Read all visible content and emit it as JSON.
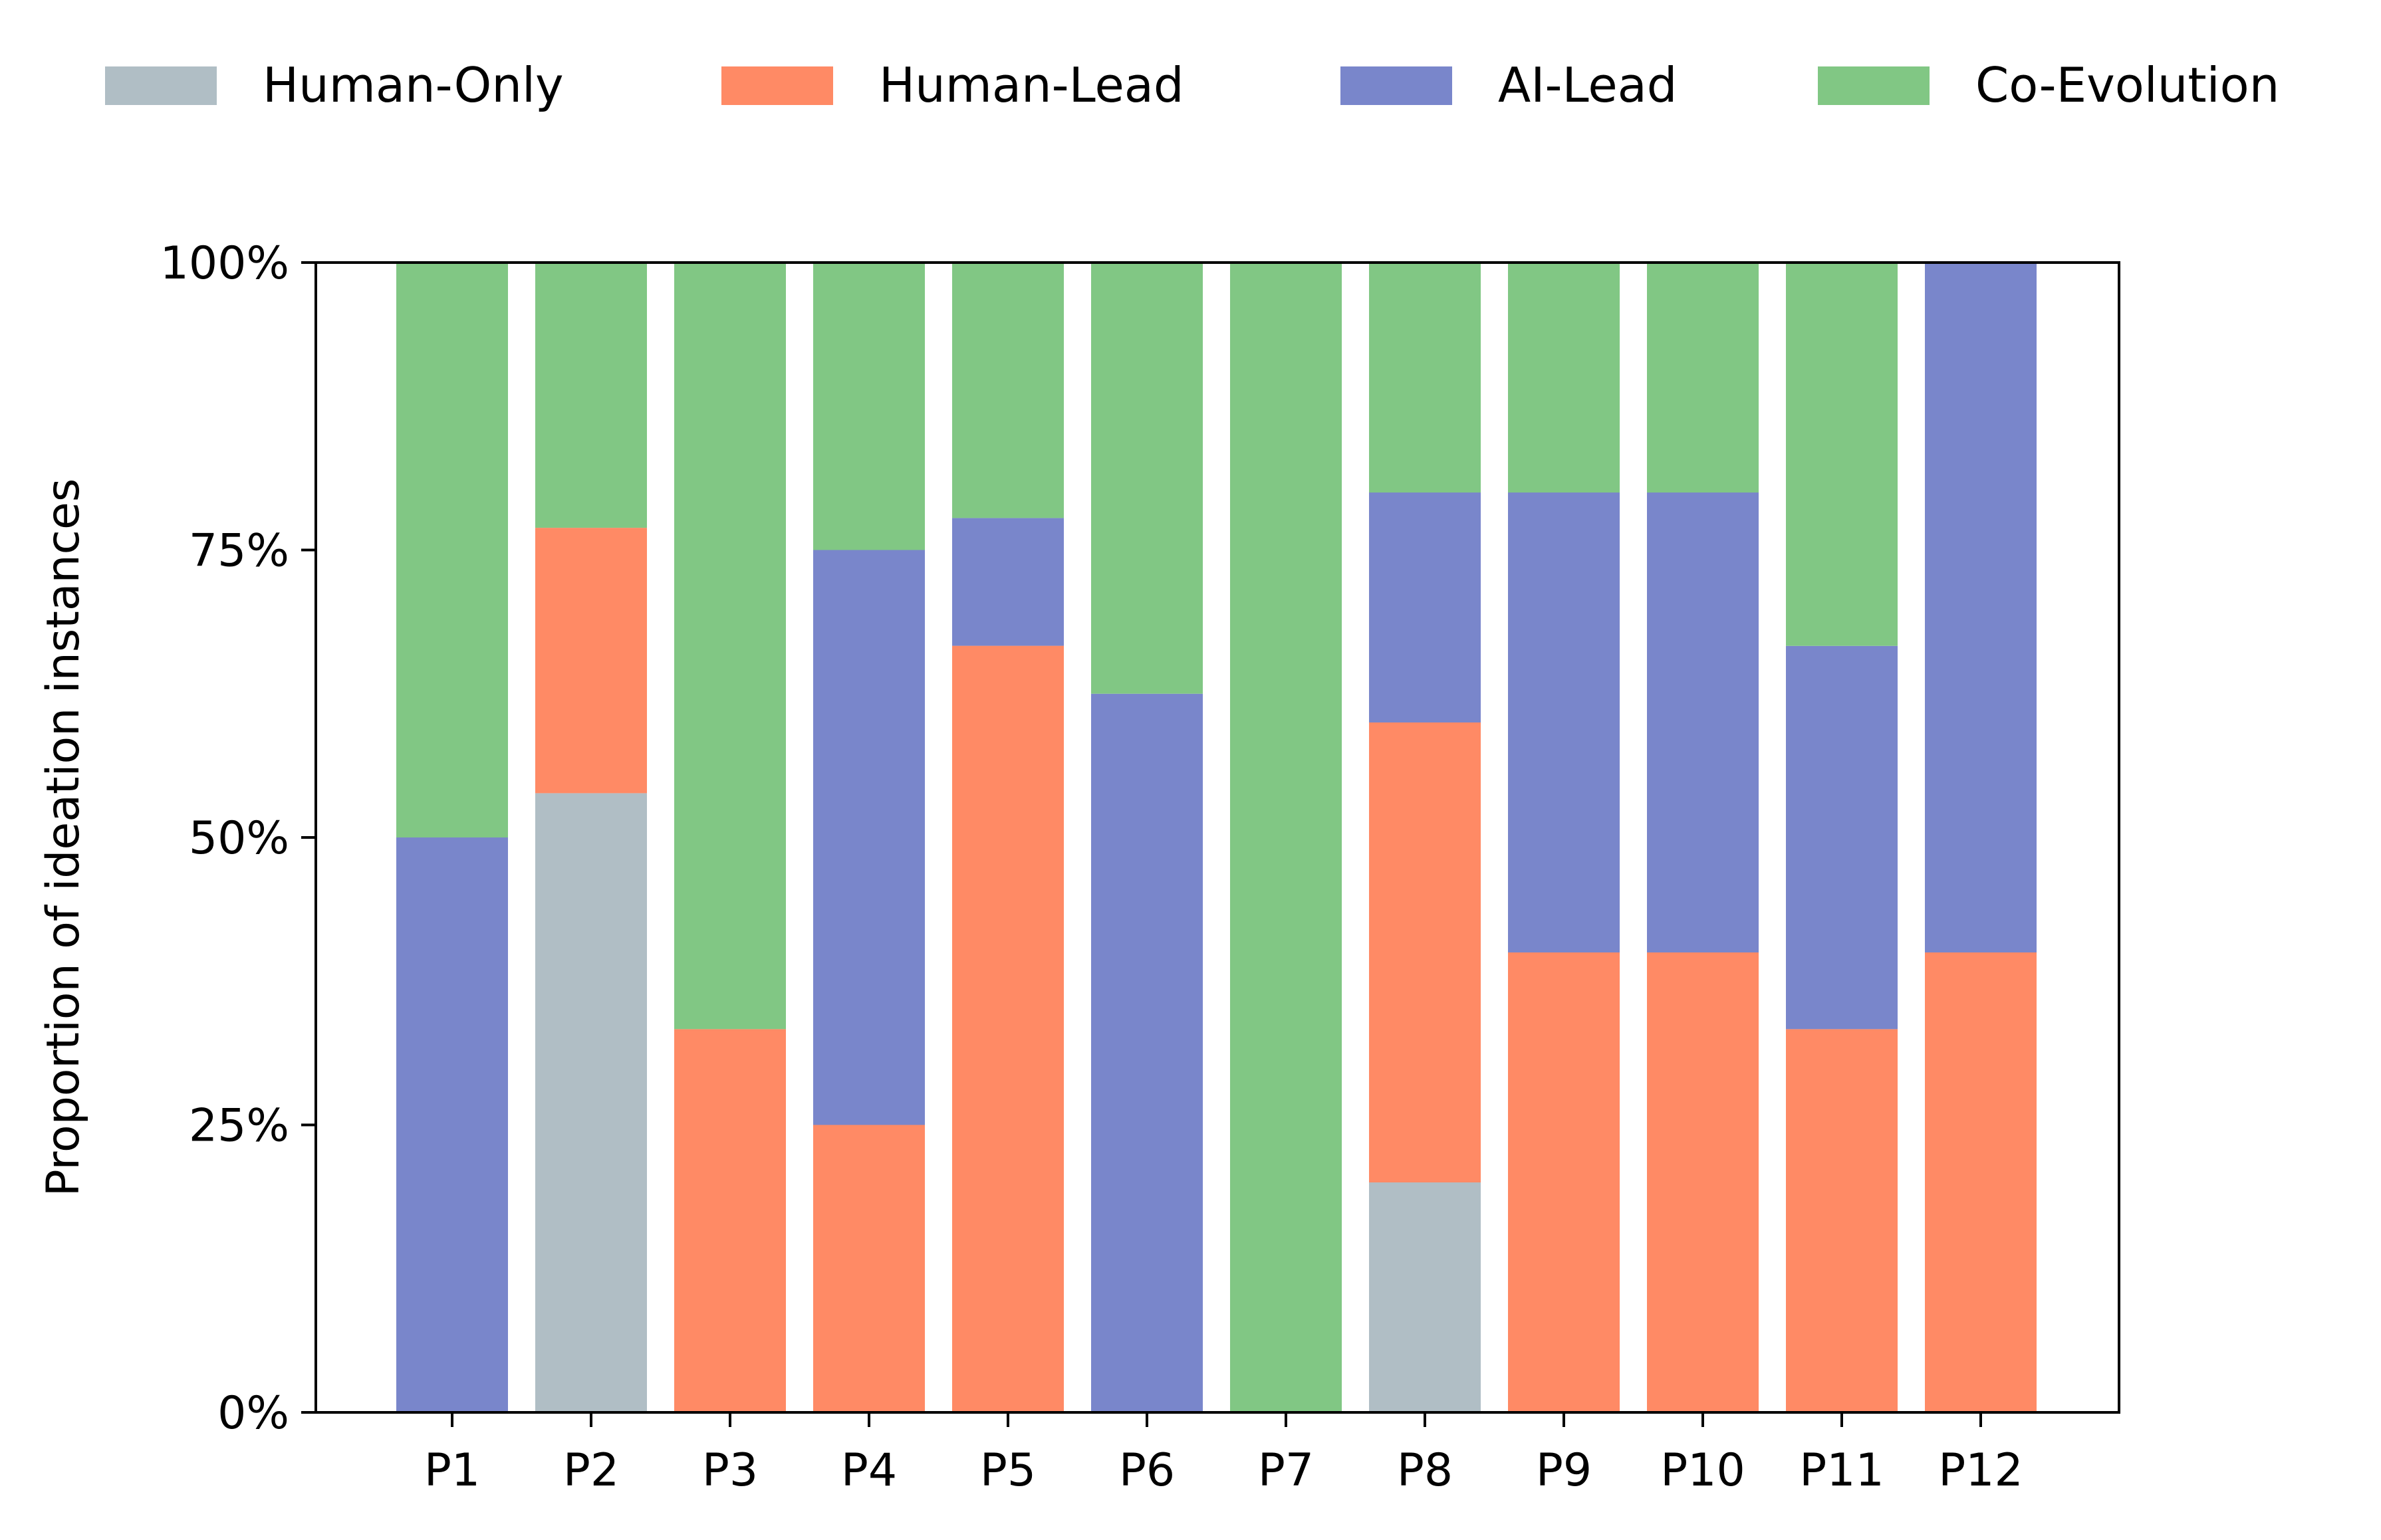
{
  "chart_data": {
    "type": "bar",
    "stacked": true,
    "title": "",
    "xlabel": "",
    "ylabel": "Proportion of ideation instances",
    "ylim": [
      0,
      100
    ],
    "y_ticks": [
      0,
      25,
      50,
      75,
      100
    ],
    "y_tick_labels": [
      "0%",
      "25%",
      "50%",
      "75%",
      "100%"
    ],
    "categories": [
      "P1",
      "P2",
      "P3",
      "P4",
      "P5",
      "P6",
      "P7",
      "P8",
      "P9",
      "P10",
      "P11",
      "P12"
    ],
    "legend_position": "top",
    "series": [
      {
        "name": "Human-Only",
        "color": "#b0bec5",
        "values": [
          0,
          53.85,
          0,
          0,
          0,
          0,
          0,
          20,
          0,
          0,
          0,
          0
        ]
      },
      {
        "name": "Human-Lead",
        "color": "#ff8a65",
        "values": [
          0,
          23.08,
          33.33,
          25,
          66.67,
          0,
          0,
          40,
          40,
          40,
          33.33,
          40
        ]
      },
      {
        "name": "AI-Lead",
        "color": "#7986cb",
        "values": [
          50,
          0,
          0,
          50,
          11.11,
          62.5,
          0,
          20,
          40,
          40,
          33.33,
          60
        ]
      },
      {
        "name": "Co-Evolution",
        "color": "#81c784",
        "values": [
          50,
          23.07,
          66.67,
          25,
          22.22,
          37.5,
          100,
          20,
          20,
          20,
          33.34,
          0
        ]
      }
    ]
  }
}
